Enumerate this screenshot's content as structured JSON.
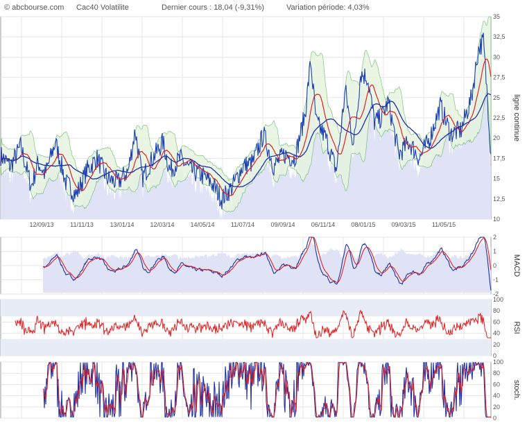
{
  "header": {
    "site": "© abcbourse.com",
    "instrument": "Cac40 Volatilite",
    "last_price": "Dernier cours : 18,04 (-9,31%)",
    "variation": "Variation période: 4,03%"
  },
  "colors": {
    "price": "#1c3fb5",
    "ma_short": "#e02020",
    "ma_long": "#1c2fa5",
    "bollinger_fill": "#e6f3de",
    "bollinger_line": "#4caf50",
    "volume_fill": "#dfe3f5",
    "grid": "#e6e6e6",
    "rsi": "#e02020",
    "band_fill": "#e8ecf7"
  },
  "chart_data": [
    {
      "type": "line",
      "name": "price",
      "ylabel": "ligne continue",
      "ylim": [
        10,
        35
      ],
      "yticks": [
        "35",
        "32,5",
        "30",
        "27,5",
        "25",
        "22,5",
        "20",
        "17,5",
        "15",
        "12,5",
        "10"
      ],
      "x_labels": [
        "12/09/13",
        "11/11/13",
        "13/01/14",
        "12/03/14",
        "14/05/14",
        "11/07/14",
        "09/09/14",
        "06/11/14",
        "08/01/15",
        "09/03/15",
        "11/05/15"
      ],
      "keypoints": [
        [
          0,
          18
        ],
        [
          15,
          16.5
        ],
        [
          30,
          19
        ],
        [
          45,
          14
        ],
        [
          55,
          17
        ],
        [
          65,
          15.5
        ],
        [
          80,
          19.5
        ],
        [
          95,
          14.5
        ],
        [
          110,
          13
        ],
        [
          125,
          16
        ],
        [
          140,
          17.5
        ],
        [
          155,
          15
        ],
        [
          170,
          14.5
        ],
        [
          185,
          16
        ],
        [
          195,
          21
        ],
        [
          205,
          15
        ],
        [
          220,
          17.5
        ],
        [
          235,
          19.5
        ],
        [
          245,
          16
        ],
        [
          260,
          17.5
        ],
        [
          275,
          16
        ],
        [
          290,
          15.5
        ],
        [
          305,
          14.5
        ],
        [
          320,
          12.5
        ],
        [
          335,
          14
        ],
        [
          350,
          16.5
        ],
        [
          365,
          17
        ],
        [
          380,
          20.5
        ],
        [
          395,
          16.5
        ],
        [
          410,
          18
        ],
        [
          425,
          17.5
        ],
        [
          440,
          23
        ],
        [
          448,
          29.5
        ],
        [
          456,
          22
        ],
        [
          470,
          20
        ],
        [
          485,
          16
        ],
        [
          498,
          26
        ],
        [
          510,
          19
        ],
        [
          520,
          28
        ],
        [
          530,
          27.5
        ],
        [
          540,
          22
        ],
        [
          550,
          22.5
        ],
        [
          560,
          24.5
        ],
        [
          575,
          18
        ],
        [
          590,
          19.5
        ],
        [
          605,
          17.5
        ],
        [
          620,
          20
        ],
        [
          635,
          24
        ],
        [
          650,
          20.5
        ],
        [
          665,
          21
        ],
        [
          680,
          25
        ],
        [
          690,
          31
        ],
        [
          697,
          32
        ],
        [
          703,
          25
        ],
        [
          708,
          18
        ]
      ]
    },
    {
      "type": "line",
      "name": "MACD",
      "ylabel": "MACD",
      "ylim": [
        -2,
        2
      ],
      "yticks": [
        "2",
        "1",
        "0",
        "-1",
        "-2"
      ]
    },
    {
      "type": "line",
      "name": "RSI",
      "ylabel": "RSI",
      "ylim": [
        0,
        100
      ],
      "yticks": [
        "100",
        "80",
        "60",
        "40",
        "20",
        "0"
      ]
    },
    {
      "type": "line",
      "name": "stoch",
      "ylabel": "stoch.",
      "ylim": [
        0,
        100
      ],
      "yticks": [
        "100",
        "80",
        "60",
        "40",
        "20",
        "0"
      ]
    }
  ]
}
